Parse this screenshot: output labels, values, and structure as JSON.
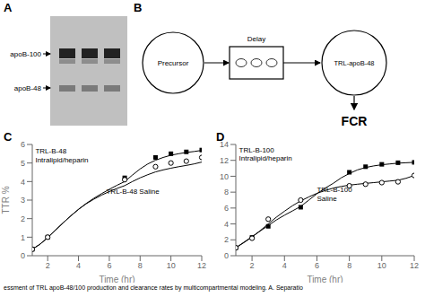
{
  "chart_data": [
    {
      "type": "diagram",
      "title": "A",
      "annotations": [
        "apoB-100",
        "apoB-48"
      ]
    },
    {
      "type": "diagram",
      "title": "B",
      "annotations": [
        "Precursor",
        "Delay",
        "TRL-apoB-48",
        "FCR"
      ]
    },
    {
      "type": "line",
      "title": "C",
      "xlabel": "Time (hr)",
      "ylabel": "TTR %",
      "xlim": [
        1,
        12
      ],
      "ylim": [
        0,
        6
      ],
      "xticks": [
        2,
        4,
        6,
        8,
        10,
        12
      ],
      "yticks": [
        0,
        1,
        2,
        3,
        4,
        5,
        6
      ],
      "series": [
        {
          "type": "line",
          "color": "#000000",
          "line_style": "solid",
          "x": [
            1,
            1.5,
            2,
            2.5,
            3,
            3.5,
            4,
            4.5,
            5,
            5.5,
            6,
            6.5,
            7,
            7.5,
            8,
            8.5,
            9,
            9.5,
            10,
            10.5,
            11,
            11.5,
            12
          ],
          "values": [
            0.35,
            0.62,
            0.97,
            1.38,
            1.77,
            2.15,
            2.5,
            2.82,
            3.1,
            3.35,
            3.58,
            3.8,
            4.0,
            4.35,
            4.68,
            4.95,
            5.15,
            5.3,
            5.42,
            5.5,
            5.57,
            5.62,
            5.68
          ]
        },
        {
          "type": "line",
          "color": "#000000",
          "line_style": "solid",
          "x": [
            1,
            1.5,
            2,
            2.5,
            3,
            3.5,
            4,
            4.5,
            5,
            5.5,
            6,
            6.5,
            7,
            7.5,
            8,
            8.5,
            9,
            9.5,
            10,
            10.5,
            11,
            11.5,
            12
          ],
          "values": [
            0.35,
            0.62,
            0.97,
            1.38,
            1.77,
            2.15,
            2.5,
            2.8,
            3.05,
            3.27,
            3.46,
            3.63,
            3.78,
            4.0,
            4.2,
            4.37,
            4.52,
            4.63,
            4.72,
            4.8,
            4.87,
            4.95,
            5.05
          ]
        },
        {
          "type": "scatter",
          "color": "#000000",
          "marker": "square",
          "x": [
            1,
            2,
            7,
            9,
            10,
            11,
            12
          ],
          "values": [
            0.35,
            1.0,
            4.2,
            5.3,
            5.5,
            5.6,
            5.7
          ]
        },
        {
          "type": "scatter",
          "color": "#000000",
          "marker": "open_circle",
          "x": [
            1,
            2,
            7,
            9,
            10,
            11,
            12
          ],
          "values": [
            0.35,
            1.0,
            4.1,
            4.8,
            5.0,
            5.1,
            5.3
          ]
        }
      ],
      "annotations": [
        {
          "text": "TRL-B-48\nIntralipid/heparin",
          "x": 1.2,
          "y": 5.85
        },
        {
          "text": "TRL-B-48 Saline",
          "x": 5.8,
          "y": 3.7
        }
      ]
    },
    {
      "type": "line",
      "title": "D",
      "xlabel": "Time (hr)",
      "xlim": [
        1,
        12
      ],
      "ylim": [
        0,
        14
      ],
      "xticks": [
        2,
        4,
        6,
        8,
        10,
        12
      ],
      "yticks": [
        0,
        2,
        4,
        6,
        8,
        10,
        12,
        14
      ],
      "series": [
        {
          "type": "line",
          "color": "#000000",
          "line_style": "solid",
          "x": [
            1,
            1.5,
            2,
            2.5,
            3,
            3.5,
            4,
            4.5,
            5,
            5.5,
            6,
            6.5,
            7,
            7.5,
            8,
            8.5,
            9,
            9.5,
            10,
            10.5,
            11,
            11.5,
            12
          ],
          "values": [
            1.0,
            1.7,
            2.4,
            3.1,
            3.8,
            4.5,
            5.1,
            5.65,
            6.2,
            7.0,
            7.8,
            8.5,
            9.1,
            9.8,
            10.35,
            10.8,
            11.1,
            11.3,
            11.45,
            11.55,
            11.65,
            11.7,
            11.75
          ]
        },
        {
          "type": "line",
          "color": "#000000",
          "line_style": "solid",
          "x": [
            1,
            1.5,
            2,
            2.5,
            3,
            3.5,
            4,
            4.5,
            5,
            5.5,
            6,
            6.5,
            7,
            7.5,
            8,
            8.5,
            9,
            9.5,
            10,
            10.5,
            11,
            11.5,
            12
          ],
          "values": [
            1.0,
            1.65,
            2.35,
            3.15,
            4.0,
            4.85,
            5.6,
            6.3,
            6.9,
            7.4,
            7.85,
            8.2,
            8.5,
            8.72,
            8.88,
            9.0,
            9.1,
            9.2,
            9.3,
            9.4,
            9.5,
            9.75,
            10.1
          ]
        },
        {
          "type": "scatter",
          "color": "#000000",
          "marker": "square",
          "x": [
            1,
            2,
            3,
            5,
            8,
            9,
            10,
            11,
            12
          ],
          "values": [
            1.0,
            2.3,
            3.7,
            6.1,
            10.5,
            11.2,
            11.5,
            11.7,
            11.75
          ]
        },
        {
          "type": "scatter",
          "color": "#000000",
          "marker": "open_circle",
          "x": [
            1,
            2,
            3,
            5,
            8,
            9,
            10,
            11,
            12
          ],
          "values": [
            1.0,
            2.2,
            4.6,
            7.0,
            8.8,
            9.0,
            9.2,
            9.3,
            10.1
          ]
        }
      ],
      "annotations": [
        {
          "text": "TRL-B-100\nIntralipid/heparin",
          "x": 1.2,
          "y": 13.8
        },
        {
          "text": "TRL-B-100\nSaline",
          "x": 6.0,
          "y": 8.8
        }
      ]
    }
  ],
  "caption": "essment of TRL apoB-48/100 production and clearance rates by multicompartmental modeling. A. Separatio"
}
